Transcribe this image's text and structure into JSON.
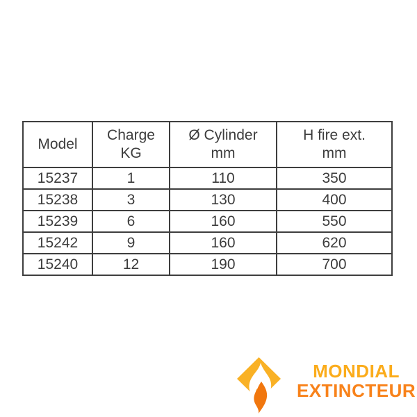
{
  "page": {
    "background": "#ffffff"
  },
  "table": {
    "columns": [
      {
        "id": "model",
        "lines": [
          "Model"
        ]
      },
      {
        "id": "charge",
        "lines": [
          "Charge",
          "KG"
        ]
      },
      {
        "id": "cylinder",
        "lines": [
          "Ø Cylinder",
          "mm"
        ]
      },
      {
        "id": "height",
        "lines": [
          "H fire ext.",
          "mm"
        ]
      }
    ],
    "rows": [
      [
        "15237",
        "1",
        "110",
        "350"
      ],
      [
        "15238",
        "3",
        "130",
        "400"
      ],
      [
        "15239",
        "6",
        "160",
        "550"
      ],
      [
        "15242",
        "9",
        "160",
        "620"
      ],
      [
        "15240",
        "12",
        "190",
        "700"
      ]
    ],
    "border_color": "#3e3e3e",
    "text_color": "#3c3c3c"
  },
  "logo": {
    "line1": "MONDIAL",
    "line2": "EXTINCTEUR",
    "icon": "flame-diamond-icon",
    "colors": {
      "line1": "#FBAC1B",
      "line2": "#F8821A",
      "diamond": "#F9B125",
      "flame": "#F1770E",
      "flame_cutout": "#FFFFFF"
    }
  }
}
